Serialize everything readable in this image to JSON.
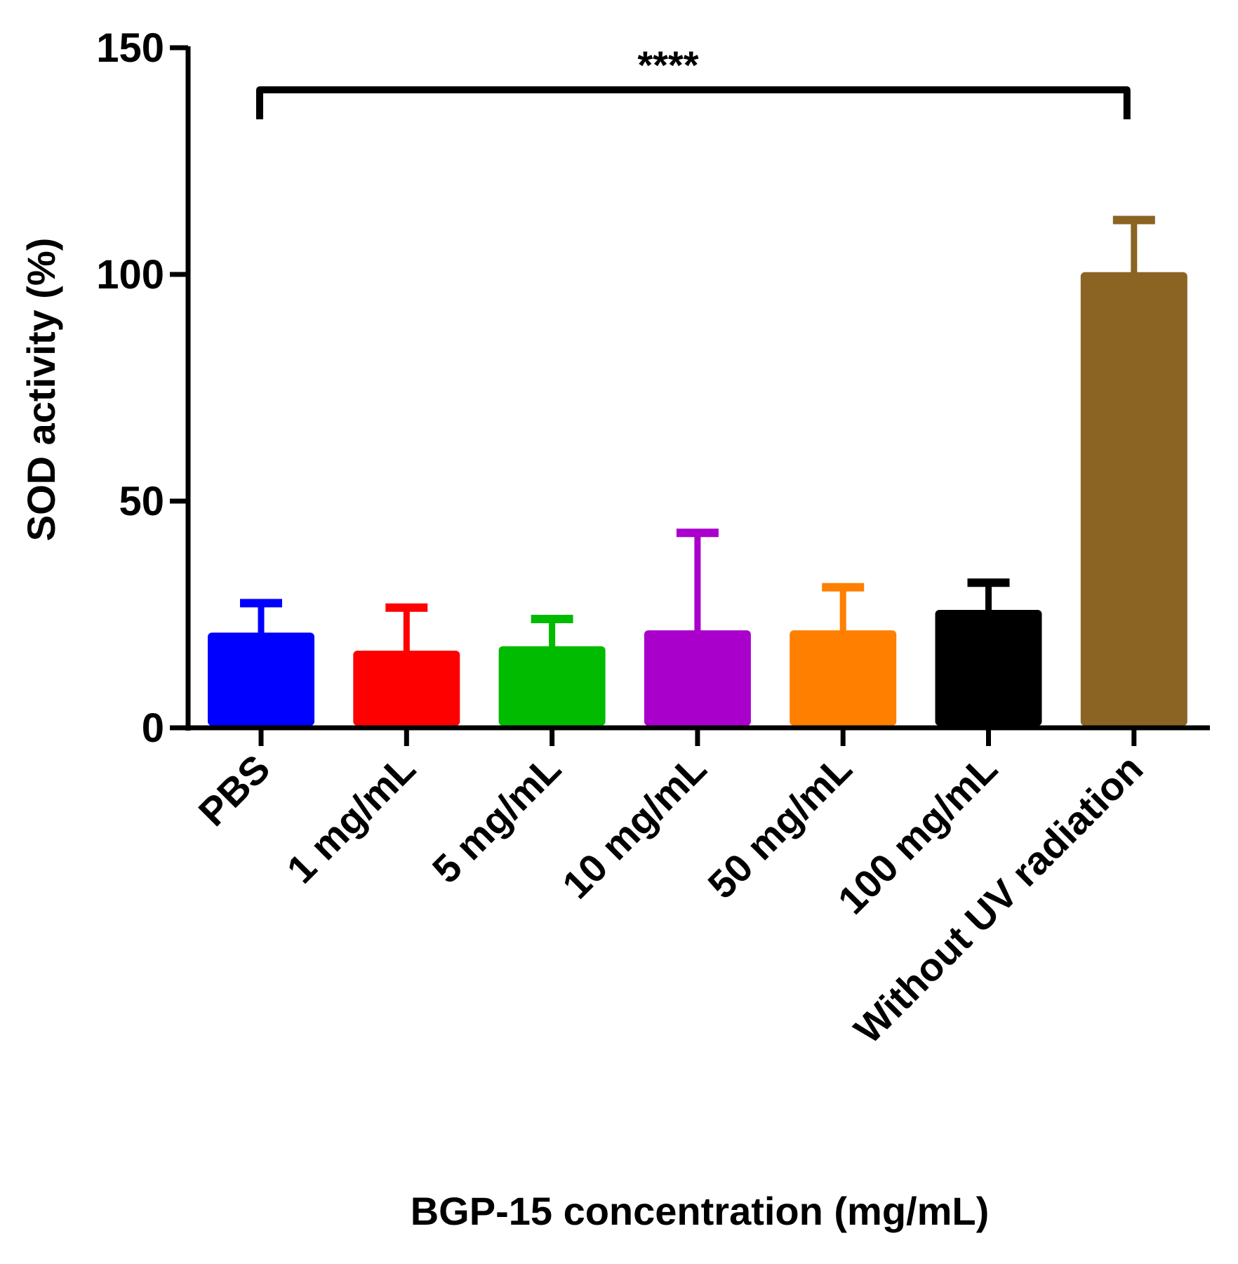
{
  "chart_data": {
    "type": "bar",
    "title": "",
    "xlabel": "BGP-15 concentration (mg/mL)",
    "ylabel": "SOD activity (%)",
    "ylim": [
      0,
      150
    ],
    "yticks": [
      0,
      50,
      100,
      150
    ],
    "categories": [
      "PBS",
      "1 mg/mL",
      "5 mg/mL",
      "10 mg/mL",
      "50 mg/mL",
      "100 mg/mL",
      "Without UV radiation"
    ],
    "values": [
      21,
      17,
      18,
      21.5,
      21.5,
      26,
      100.5
    ],
    "errors": [
      6.5,
      9.5,
      6,
      21.5,
      9.5,
      6,
      11.5
    ],
    "colors": [
      "#0000ff",
      "#ff0000",
      "#00bb00",
      "#aa00cc",
      "#ff7f00",
      "#000000",
      "#8b6423"
    ],
    "significance": {
      "label": "****",
      "from_category": "PBS",
      "to_category": "Without UV radiation"
    },
    "grid": false,
    "legend": "none"
  }
}
